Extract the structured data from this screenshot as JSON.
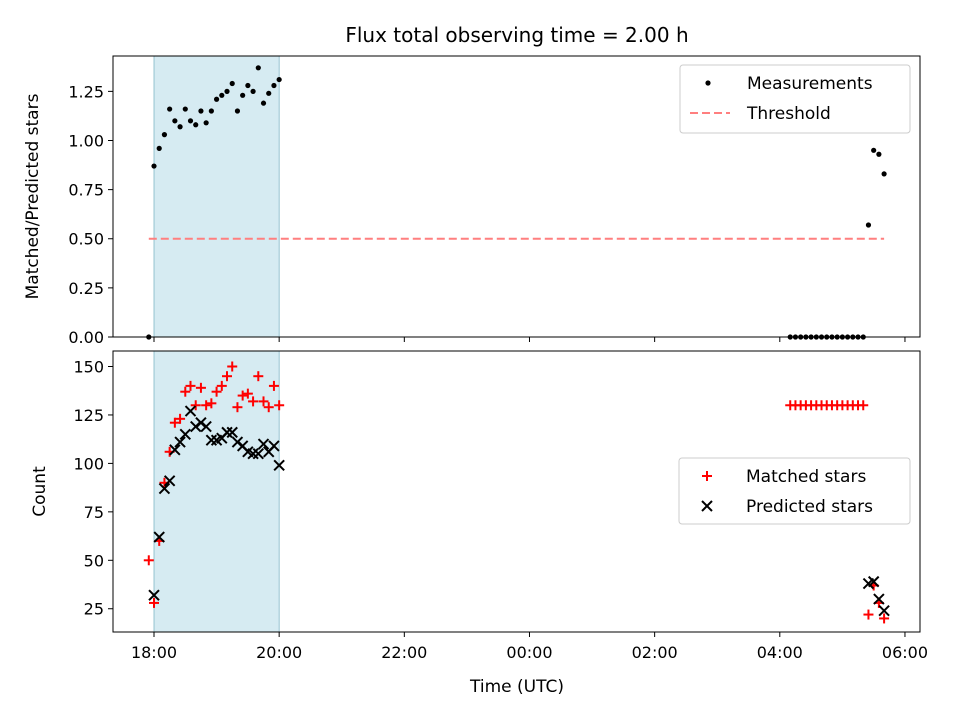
{
  "figure": {
    "title": "Flux total observing time = 2.00 h",
    "xlabel": "Time (UTC)"
  },
  "chart_data": [
    {
      "type": "scatter",
      "ylabel": "Matched/Predicted stars",
      "ylim": [
        0,
        1.43
      ],
      "yticks": [
        0.0,
        0.25,
        0.5,
        0.75,
        1.0,
        1.25
      ],
      "ytick_labels": [
        "0.00",
        "0.25",
        "0.50",
        "0.75",
        "1.00",
        "1.25"
      ],
      "xticks": [
        "18:00",
        "20:00",
        "22:00",
        "00:00",
        "02:00",
        "04:00",
        "06:00"
      ],
      "shaded_interval": [
        "18:00",
        "20:00"
      ],
      "legend_position": "upper right",
      "series": [
        {
          "name": "Measurements",
          "marker": "dot",
          "color": "#000000",
          "points": [
            [
              "17:55",
              0.0
            ],
            [
              "18:00",
              0.87
            ],
            [
              "18:05",
              0.96
            ],
            [
              "18:10",
              1.03
            ],
            [
              "18:15",
              1.16
            ],
            [
              "18:20",
              1.1
            ],
            [
              "18:25",
              1.07
            ],
            [
              "18:30",
              1.16
            ],
            [
              "18:35",
              1.1
            ],
            [
              "18:40",
              1.08
            ],
            [
              "18:45",
              1.15
            ],
            [
              "18:50",
              1.09
            ],
            [
              "18:55",
              1.15
            ],
            [
              "19:00",
              1.21
            ],
            [
              "19:05",
              1.23
            ],
            [
              "19:10",
              1.25
            ],
            [
              "19:15",
              1.29
            ],
            [
              "19:20",
              1.15
            ],
            [
              "19:25",
              1.23
            ],
            [
              "19:30",
              1.28
            ],
            [
              "19:35",
              1.25
            ],
            [
              "19:40",
              1.37
            ],
            [
              "19:45",
              1.19
            ],
            [
              "19:50",
              1.24
            ],
            [
              "19:55",
              1.28
            ],
            [
              "20:00",
              1.31
            ],
            [
              "04:10",
              0.0
            ],
            [
              "04:15",
              0.0
            ],
            [
              "04:20",
              0.0
            ],
            [
              "04:25",
              0.0
            ],
            [
              "04:30",
              0.0
            ],
            [
              "04:35",
              0.0
            ],
            [
              "04:40",
              0.0
            ],
            [
              "04:45",
              0.0
            ],
            [
              "04:50",
              0.0
            ],
            [
              "04:55",
              0.0
            ],
            [
              "05:00",
              0.0
            ],
            [
              "05:05",
              0.0
            ],
            [
              "05:10",
              0.0
            ],
            [
              "05:15",
              0.0
            ],
            [
              "05:20",
              0.0
            ],
            [
              "05:25",
              0.57
            ],
            [
              "05:30",
              0.95
            ],
            [
              "05:35",
              0.93
            ],
            [
              "05:40",
              0.83
            ]
          ]
        },
        {
          "name": "Threshold",
          "marker": "dashed-line",
          "color": "#ff7f7f",
          "points": [
            [
              "17:55",
              0.5
            ],
            [
              "05:40",
              0.5
            ]
          ]
        }
      ]
    },
    {
      "type": "scatter",
      "ylabel": "Count",
      "ylim": [
        13,
        158
      ],
      "yticks": [
        25,
        50,
        75,
        100,
        125,
        150
      ],
      "ytick_labels": [
        "25",
        "50",
        "75",
        "100",
        "125",
        "150"
      ],
      "xticks": [
        "18:00",
        "20:00",
        "22:00",
        "00:00",
        "02:00",
        "04:00",
        "06:00"
      ],
      "shaded_interval": [
        "18:00",
        "20:00"
      ],
      "legend_position": "center right",
      "series": [
        {
          "name": "Matched stars",
          "marker": "plus",
          "color": "#ff0000",
          "points": [
            [
              "17:55",
              50
            ],
            [
              "18:00",
              28
            ],
            [
              "18:05",
              60
            ],
            [
              "18:10",
              90
            ],
            [
              "18:15",
              106
            ],
            [
              "18:20",
              121
            ],
            [
              "18:25",
              123
            ],
            [
              "18:30",
              137
            ],
            [
              "18:35",
              140
            ],
            [
              "18:40",
              130
            ],
            [
              "18:45",
              139
            ],
            [
              "18:50",
              130
            ],
            [
              "18:55",
              131
            ],
            [
              "19:00",
              137
            ],
            [
              "19:05",
              140
            ],
            [
              "19:10",
              145
            ],
            [
              "19:15",
              150
            ],
            [
              "19:20",
              129
            ],
            [
              "19:25",
              135
            ],
            [
              "19:30",
              136
            ],
            [
              "19:35",
              132
            ],
            [
              "19:40",
              145
            ],
            [
              "19:45",
              132
            ],
            [
              "19:50",
              129
            ],
            [
              "19:55",
              140
            ],
            [
              "20:00",
              130
            ],
            [
              "04:10",
              130
            ],
            [
              "04:15",
              130
            ],
            [
              "04:20",
              130
            ],
            [
              "04:25",
              130
            ],
            [
              "04:30",
              130
            ],
            [
              "04:35",
              130
            ],
            [
              "04:40",
              130
            ],
            [
              "04:45",
              130
            ],
            [
              "04:50",
              130
            ],
            [
              "04:55",
              130
            ],
            [
              "05:00",
              130
            ],
            [
              "05:05",
              130
            ],
            [
              "05:10",
              130
            ],
            [
              "05:15",
              130
            ],
            [
              "05:20",
              130
            ],
            [
              "05:25",
              22
            ],
            [
              "05:30",
              37
            ],
            [
              "05:35",
              28
            ],
            [
              "05:40",
              20
            ]
          ]
        },
        {
          "name": "Predicted stars",
          "marker": "x",
          "color": "#000000",
          "points": [
            [
              "18:00",
              32
            ],
            [
              "18:05",
              62
            ],
            [
              "18:10",
              87
            ],
            [
              "18:15",
              91
            ],
            [
              "18:20",
              107
            ],
            [
              "18:25",
              111
            ],
            [
              "18:30",
              115
            ],
            [
              "18:35",
              127
            ],
            [
              "18:40",
              119
            ],
            [
              "18:45",
              121
            ],
            [
              "18:50",
              119
            ],
            [
              "18:55",
              112
            ],
            [
              "19:00",
              112
            ],
            [
              "19:05",
              113
            ],
            [
              "19:10",
              116
            ],
            [
              "19:15",
              116
            ],
            [
              "19:20",
              111
            ],
            [
              "19:25",
              109
            ],
            [
              "19:30",
              106
            ],
            [
              "19:35",
              105
            ],
            [
              "19:40",
              105
            ],
            [
              "19:45",
              110
            ],
            [
              "19:50",
              106
            ],
            [
              "19:55",
              109
            ],
            [
              "20:00",
              99
            ],
            [
              "05:25",
              38
            ],
            [
              "05:30",
              39
            ],
            [
              "05:35",
              30
            ],
            [
              "05:40",
              24
            ]
          ]
        }
      ]
    }
  ]
}
